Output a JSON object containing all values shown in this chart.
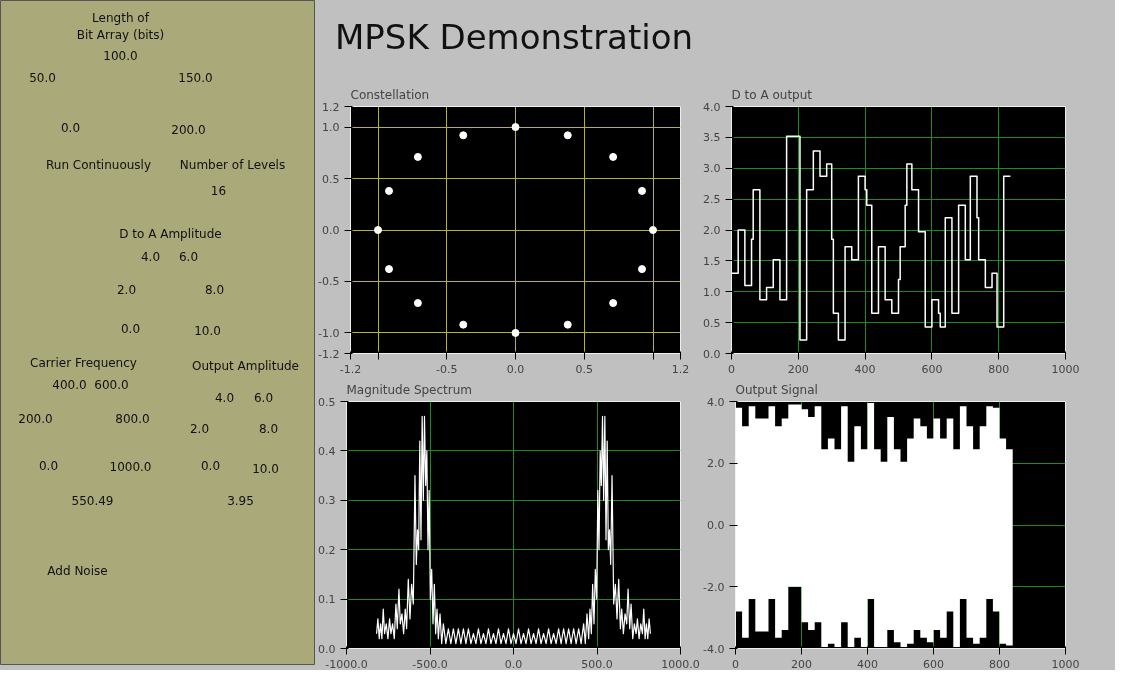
{
  "chart_data": [
    {
      "type": "other",
      "title": "MPSK Demonstration"
    },
    {
      "type": "other",
      "annotations": [
        "Length of",
        "Bit Array (bits)",
        "100.0",
        "50.0",
        "150.0",
        "0.0",
        "200.0",
        "Run Continuously",
        "Number of Levels",
        "16",
        "D to A Amplitude",
        "4.0",
        "6.0",
        "2.0",
        "8.0",
        "0.0",
        "10.0",
        "Carrier Frequency",
        "400.0",
        "600.0",
        "200.0",
        "800.0",
        "0.0",
        "1000.0",
        "Output Amplitude",
        "4.0",
        "6.0",
        "2.0",
        "8.0",
        "0.0",
        "10.0",
        "550.49",
        "3.95",
        "Add Noise"
      ]
    },
    {
      "type": "scatter",
      "title": "Constellation",
      "marker": "circle",
      "color": "#ffffff",
      "grid": true,
      "x": [
        1.0,
        0.92,
        0.71,
        0.38,
        0.0,
        -0.38,
        -0.71,
        -0.92,
        -1.0,
        -0.92,
        -0.71,
        -0.38,
        0.0,
        0.38,
        0.71,
        0.92
      ],
      "values": [
        0.0,
        0.38,
        0.71,
        0.92,
        1.0,
        0.92,
        0.71,
        0.38,
        0.0,
        -0.38,
        -0.71,
        -0.92,
        -1.0,
        -0.92,
        -0.71,
        -0.38
      ],
      "xlim": [
        -1.2,
        1.2
      ],
      "ylim": [
        -1.2,
        1.2
      ],
      "xticks": [
        {
          "value": -1.2,
          "label": "-1.2"
        },
        {
          "value": -1.0,
          "label": null
        },
        {
          "value": -0.5,
          "label": "-0.5"
        },
        {
          "value": 0,
          "label": "0.0"
        },
        {
          "value": 0.5,
          "label": "0.5"
        },
        {
          "value": 1.0,
          "label": null
        },
        {
          "value": 1.2,
          "label": "1.2"
        }
      ],
      "yticks": [
        {
          "value": -1.2,
          "label": "-1.2"
        },
        {
          "value": -1.0,
          "label": "-1.0"
        },
        {
          "value": -0.5,
          "label": "-0.5"
        },
        {
          "value": 0,
          "label": "0.0"
        },
        {
          "value": 0.5,
          "label": "0.5"
        },
        {
          "value": 1.0,
          "label": "1.0"
        },
        {
          "value": 1.2,
          "label": "1.2"
        }
      ]
    },
    {
      "type": "step",
      "title": "D to A output",
      "color": "#ffffff",
      "grid": true,
      "x": [
        0,
        20,
        40,
        60,
        65,
        85,
        105,
        125,
        145,
        165,
        205,
        225,
        245,
        265,
        285,
        300,
        305,
        320,
        340,
        360,
        380,
        400,
        405,
        420,
        440,
        460,
        480,
        500,
        505,
        520,
        525,
        540,
        560,
        580,
        600,
        620,
        625,
        640,
        660,
        680,
        700,
        715,
        735,
        740,
        760,
        780,
        795,
        815,
        835
      ],
      "values": [
        1.3,
        2.0,
        1.1,
        1.85,
        2.65,
        0.87,
        1.07,
        1.52,
        0.87,
        3.52,
        0.22,
        2.65,
        3.28,
        2.87,
        3.07,
        1.85,
        0.65,
        0.22,
        1.73,
        1.52,
        2.87,
        2.65,
        2.4,
        0.65,
        1.73,
        0.87,
        0.65,
        1.2,
        1.73,
        2.4,
        3.07,
        2.65,
        1.97,
        0.43,
        0.87,
        0.65,
        0.43,
        2.2,
        0.65,
        2.4,
        1.52,
        2.87,
        2.2,
        1.52,
        1.07,
        1.3,
        0.43,
        2.87,
        2.87
      ],
      "xlim": [
        0,
        1000
      ],
      "ylim": [
        0,
        4
      ],
      "xticks": [
        0,
        200,
        400,
        600,
        800,
        1000
      ],
      "yticks": [
        {
          "value": 0,
          "label": "0.0"
        },
        {
          "value": 0.5,
          "label": "0.5"
        },
        {
          "value": 1,
          "label": "1.0"
        },
        {
          "value": 1.5,
          "label": "1.5"
        },
        {
          "value": 2,
          "label": "2.0"
        },
        {
          "value": 2.5,
          "label": "2.5"
        },
        {
          "value": 3,
          "label": "3.0"
        },
        {
          "value": 3.5,
          "label": "3.5"
        },
        {
          "value": 4,
          "label": "4.0"
        }
      ]
    },
    {
      "type": "line",
      "title": "Magnitude Spectrum",
      "color": "#ffffff",
      "grid": true,
      "x": [
        -820,
        -812,
        -804,
        -796,
        -788,
        -780,
        -772,
        -762,
        -752,
        -742,
        -734,
        -724,
        -714,
        -704,
        -696,
        -686,
        -678,
        -668,
        -658,
        -648,
        -640,
        -630,
        -620,
        -610,
        -600,
        -590,
        -582,
        -575,
        -568,
        -561,
        -554,
        -547,
        -540,
        -533,
        -526,
        -519,
        -512,
        -505,
        -498,
        -490,
        -482,
        -474,
        -466,
        -458,
        -450,
        -440,
        -430,
        -420,
        -405,
        -390,
        -375,
        -360,
        -345,
        -330,
        -315,
        -300,
        -285,
        -270,
        -255,
        -240,
        -225,
        -210,
        -195,
        -180,
        -165,
        -150,
        -135,
        -120,
        -105,
        -90,
        -75,
        -60,
        -45,
        -30,
        -15,
        0,
        15,
        30,
        45,
        60,
        75,
        90,
        105,
        120,
        135,
        150,
        165,
        180,
        195,
        210,
        225,
        240,
        255,
        270,
        285,
        300,
        315,
        330,
        345,
        360,
        375,
        390,
        405,
        420,
        430,
        440,
        450,
        458,
        466,
        474,
        482,
        490,
        498,
        505,
        512,
        519,
        526,
        533,
        540,
        547,
        554,
        561,
        568,
        575,
        582,
        590,
        600,
        610,
        620,
        630,
        640,
        648,
        658,
        668,
        678,
        686,
        696,
        704,
        714,
        724,
        734,
        742,
        752,
        762,
        772,
        780,
        788,
        796,
        804,
        812,
        820
      ],
      "values": [
        0.03,
        0.06,
        0.02,
        0.05,
        0.02,
        0.08,
        0.03,
        0.05,
        0.02,
        0.06,
        0.03,
        0.05,
        0.02,
        0.09,
        0.04,
        0.12,
        0.05,
        0.07,
        0.03,
        0.08,
        0.04,
        0.14,
        0.06,
        0.13,
        0.09,
        0.35,
        0.17,
        0.24,
        0.2,
        0.42,
        0.22,
        0.47,
        0.3,
        0.47,
        0.33,
        0.4,
        0.2,
        0.32,
        0.1,
        0.16,
        0.05,
        0.13,
        0.03,
        0.08,
        0.02,
        0.07,
        0.01,
        0.05,
        0.01,
        0.04,
        0.01,
        0.04,
        0.01,
        0.04,
        0.01,
        0.04,
        0.01,
        0.04,
        0.01,
        0.03,
        0.01,
        0.04,
        0.01,
        0.03,
        0.01,
        0.04,
        0.01,
        0.03,
        0.01,
        0.04,
        0.01,
        0.03,
        0.01,
        0.04,
        0.01,
        0.03,
        0.01,
        0.04,
        0.01,
        0.03,
        0.01,
        0.04,
        0.01,
        0.03,
        0.01,
        0.04,
        0.01,
        0.03,
        0.01,
        0.04,
        0.01,
        0.03,
        0.01,
        0.04,
        0.01,
        0.04,
        0.01,
        0.04,
        0.01,
        0.04,
        0.01,
        0.04,
        0.01,
        0.05,
        0.01,
        0.07,
        0.02,
        0.08,
        0.03,
        0.13,
        0.05,
        0.16,
        0.1,
        0.32,
        0.2,
        0.4,
        0.33,
        0.47,
        0.3,
        0.47,
        0.22,
        0.42,
        0.2,
        0.24,
        0.17,
        0.35,
        0.09,
        0.13,
        0.06,
        0.14,
        0.04,
        0.08,
        0.03,
        0.07,
        0.05,
        0.12,
        0.04,
        0.09,
        0.02,
        0.05,
        0.03,
        0.06,
        0.02,
        0.05,
        0.03,
        0.08,
        0.02,
        0.05,
        0.02,
        0.06,
        0.03
      ],
      "xlim": [
        -1000,
        1000
      ],
      "ylim": [
        0,
        0.5
      ],
      "xticks": [
        {
          "value": -1000,
          "label": "-1000.0"
        },
        {
          "value": -500,
          "label": "-500.0"
        },
        {
          "value": 0,
          "label": "0.0"
        },
        {
          "value": 500,
          "label": "500.0"
        },
        {
          "value": 1000,
          "label": "1000.0"
        }
      ],
      "yticks": [
        {
          "value": 0,
          "label": "0.0"
        },
        0.1,
        0.2,
        0.3,
        0.4,
        0.5
      ]
    },
    {
      "type": "area",
      "title": "Output Signal",
      "grid": true,
      "x": [
        0,
        20,
        20,
        40,
        40,
        60,
        60,
        80,
        80,
        100,
        100,
        120,
        120,
        140,
        140,
        160,
        160,
        180,
        180,
        200,
        200,
        220,
        220,
        240,
        240,
        260,
        260,
        280,
        280,
        300,
        300,
        320,
        320,
        340,
        340,
        360,
        360,
        380,
        380,
        400,
        400,
        420,
        420,
        440,
        440,
        460,
        460,
        480,
        480,
        500,
        500,
        520,
        520,
        540,
        540,
        560,
        560,
        580,
        580,
        600,
        600,
        620,
        620,
        640,
        640,
        660,
        660,
        680,
        680,
        700,
        700,
        720,
        720,
        740,
        740,
        760,
        760,
        780,
        780,
        800,
        800,
        820,
        820,
        840
      ],
      "series": [
        {
          "color": "#ffffff",
          "values": [
            3.8,
            3.8,
            3.2,
            3.2,
            3.85,
            3.85,
            3.45,
            3.45,
            3.45,
            3.45,
            3.85,
            3.85,
            3.2,
            3.2,
            3.45,
            3.45,
            3.9,
            3.9,
            3.9,
            3.9,
            3.75,
            3.75,
            3.5,
            3.5,
            3.85,
            3.85,
            2.45,
            2.45,
            2.8,
            2.8,
            2.45,
            2.45,
            3.85,
            3.85,
            2.05,
            2.05,
            3.2,
            3.2,
            2.45,
            2.45,
            3.95,
            3.95,
            2.45,
            2.45,
            2.05,
            2.05,
            3.5,
            3.5,
            2.45,
            2.45,
            2.05,
            2.05,
            2.8,
            2.8,
            3.45,
            3.45,
            3.2,
            3.2,
            2.8,
            2.8,
            3.45,
            3.45,
            2.8,
            2.8,
            3.45,
            3.45,
            2.45,
            2.45,
            3.85,
            3.85,
            3.2,
            3.2,
            2.45,
            2.45,
            3.2,
            3.2,
            3.85,
            3.85,
            3.8,
            3.8,
            2.8,
            2.8,
            2.45,
            2.45
          ]
        },
        {
          "color": "#ffffff",
          "values": [
            -2.8,
            -2.8,
            -3.65,
            -3.65,
            -2.4,
            -2.4,
            -3.45,
            -3.45,
            -3.45,
            -3.45,
            -2.4,
            -2.4,
            -3.65,
            -3.65,
            -3.4,
            -3.4,
            -2.0,
            -2.0,
            -2.0,
            -2.0,
            -3.15,
            -3.15,
            -3.4,
            -3.4,
            -3.15,
            -3.15,
            -3.95,
            -3.95,
            -3.85,
            -3.85,
            -3.95,
            -3.95,
            -3.15,
            -3.15,
            -3.95,
            -3.95,
            -3.65,
            -3.65,
            -3.95,
            -3.95,
            -2.4,
            -2.4,
            -3.95,
            -3.95,
            -3.95,
            -3.95,
            -3.4,
            -3.4,
            -3.8,
            -3.8,
            -3.95,
            -3.95,
            -3.85,
            -3.85,
            -3.4,
            -3.4,
            -3.65,
            -3.65,
            -3.8,
            -3.8,
            -3.4,
            -3.4,
            -3.65,
            -3.65,
            -2.8,
            -2.8,
            -3.95,
            -3.95,
            -2.4,
            -2.4,
            -3.65,
            -3.65,
            -3.85,
            -3.85,
            -3.65,
            -3.65,
            -2.4,
            -2.4,
            -2.8,
            -2.8,
            -3.85,
            -3.85,
            -3.9,
            -3.9
          ]
        }
      ],
      "xlim": [
        0,
        1000
      ],
      "ylim": [
        -4,
        4
      ],
      "xticks": [
        0,
        200,
        400,
        600,
        800,
        1000
      ],
      "yticks": [
        {
          "value": -4,
          "label": "-4.0"
        },
        {
          "value": -2,
          "label": "-2.0"
        },
        {
          "value": 0,
          "label": "0.0"
        },
        {
          "value": 2,
          "label": "2.0"
        },
        {
          "value": 4,
          "label": "4.0"
        }
      ]
    }
  ]
}
